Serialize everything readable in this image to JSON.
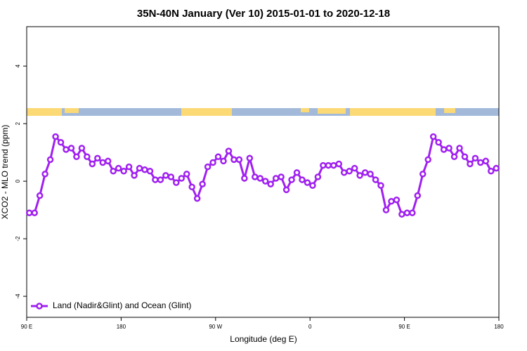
{
  "chart_data": {
    "type": "line",
    "title": "35N-40N January (Ver 10)   2015-01-01 to 2020-12-18",
    "x_label": "Longitude (deg E)",
    "y_label": "XCO2 - MLO trend (ppm)",
    "x": [
      92.5,
      97.5,
      102.5,
      107.5,
      112.5,
      117.5,
      122.5,
      127.5,
      132.5,
      137.5,
      142.5,
      147.5,
      152.5,
      157.5,
      162.5,
      167.5,
      172.5,
      177.5,
      182.5,
      187.5,
      192.5,
      197.5,
      202.5,
      207.5,
      212.5,
      217.5,
      222.5,
      227.5,
      232.5,
      237.5,
      242.5,
      247.5,
      252.5,
      257.5,
      262.5,
      267.5,
      272.5,
      277.5,
      282.5,
      287.5,
      292.5,
      297.5,
      302.5,
      307.5,
      312.5,
      317.5,
      322.5,
      327.5,
      332.5,
      337.5,
      342.5,
      347.5,
      352.5,
      357.5,
      362.5,
      367.5,
      372.5,
      377.5,
      382.5,
      387.5,
      392.5,
      397.5,
      402.5,
      407.5,
      412.5,
      417.5,
      422.5,
      427.5,
      432.5,
      437.5,
      442.5,
      447.5,
      452.5,
      457.5,
      462.5,
      467.5,
      472.5,
      477.5,
      482.5,
      487.5,
      492.5,
      497.5,
      502.5,
      507.5,
      512.5,
      517.5,
      522.5,
      527.5,
      532.5,
      537.5
    ],
    "series": [
      {
        "name": "Land (Nadir&Glint) and Ocean (Glint)",
        "color": "#a020f0",
        "values": [
          -1.1,
          -1.1,
          -0.5,
          0.25,
          0.75,
          1.55,
          1.35,
          1.1,
          1.15,
          0.85,
          1.15,
          0.85,
          0.6,
          0.8,
          0.65,
          0.7,
          0.35,
          0.45,
          0.35,
          0.5,
          0.2,
          0.45,
          0.4,
          0.35,
          0.05,
          0.05,
          0.2,
          0.15,
          -0.05,
          0.1,
          0.25,
          -0.2,
          -0.6,
          -0.1,
          0.5,
          0.65,
          0.85,
          0.7,
          1.05,
          0.75,
          0.75,
          0.1,
          0.8,
          0.15,
          0.1,
          0.0,
          -0.1,
          0.1,
          0.15,
          -0.3,
          0.05,
          0.3,
          0.05,
          -0.05,
          -0.15,
          0.15,
          0.55,
          0.55,
          0.55,
          0.6,
          0.3,
          0.35,
          0.45,
          0.2,
          0.3,
          0.25,
          0.05,
          -0.15,
          -1.0,
          -0.7,
          -0.65,
          -1.15,
          -1.1,
          -1.1,
          -0.5,
          0.25,
          0.75,
          1.55,
          1.35,
          1.1,
          1.15,
          0.85,
          1.15,
          0.85,
          0.6,
          0.8,
          0.65,
          0.7,
          0.35,
          0.45
        ]
      }
    ],
    "xlim": [
      90,
      540
    ],
    "xticks": [
      {
        "value": 90,
        "label": "90 E"
      },
      {
        "value": 180,
        "label": "180"
      },
      {
        "value": 270,
        "label": "90 W"
      },
      {
        "value": 360,
        "label": "0"
      },
      {
        "value": 450,
        "label": "90 E"
      },
      {
        "value": 540,
        "label": "180"
      }
    ],
    "ylim": [
      -4.73,
      5.37
    ],
    "yticks": [
      -4,
      -2,
      0,
      2,
      4
    ],
    "legend": "bottom-left"
  }
}
